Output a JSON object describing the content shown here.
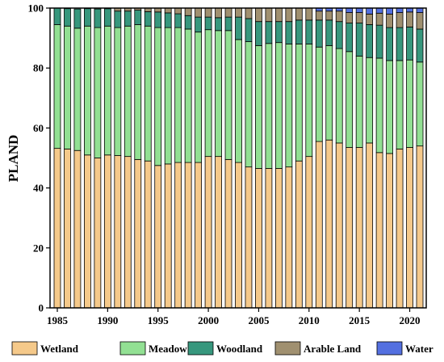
{
  "chart_data": {
    "type": "bar",
    "stacked": true,
    "ylabel": "PLAND",
    "xlabel": "",
    "ylim": [
      0,
      100
    ],
    "y_ticks": [
      0,
      20,
      40,
      60,
      80,
      100
    ],
    "x_ticks": [
      1985,
      1990,
      1995,
      2000,
      2005,
      2010,
      2015,
      2020
    ],
    "grid": false,
    "legend_position": "bottom",
    "categories": [
      1985,
      1986,
      1987,
      1988,
      1989,
      1990,
      1991,
      1992,
      1993,
      1994,
      1995,
      1996,
      1997,
      1998,
      1999,
      2000,
      2001,
      2002,
      2003,
      2004,
      2005,
      2006,
      2007,
      2008,
      2009,
      2010,
      2011,
      2012,
      2013,
      2014,
      2015,
      2016,
      2017,
      2018,
      2019,
      2020,
      2021
    ],
    "series": [
      {
        "name": "Wetland",
        "color": "#f5c98a",
        "values": [
          53.2,
          53.0,
          52.5,
          51.0,
          50.0,
          51.0,
          50.8,
          50.5,
          49.5,
          49.0,
          47.5,
          48.0,
          48.5,
          48.5,
          48.5,
          50.5,
          50.5,
          49.5,
          48.5,
          47.0,
          46.5,
          46.5,
          46.5,
          47.0,
          49.0,
          50.5,
          55.5,
          56.0,
          55.0,
          53.5,
          53.5,
          55.0,
          51.8,
          51.5,
          53.0,
          53.5,
          54.0
        ]
      },
      {
        "name": "Meadow",
        "color": "#92e093",
        "values": [
          41.3,
          41.0,
          40.8,
          43.0,
          43.5,
          43.0,
          42.7,
          43.5,
          45.0,
          45.0,
          46.0,
          45.5,
          45.0,
          44.5,
          43.5,
          42.3,
          42.0,
          43.0,
          41.0,
          41.8,
          41.0,
          41.7,
          42.0,
          41.0,
          39.0,
          37.5,
          31.5,
          31.5,
          31.5,
          32.0,
          30.5,
          28.5,
          31.5,
          31.0,
          29.5,
          29.2,
          28.0
        ]
      },
      {
        "name": "Woodland",
        "color": "#37977d",
        "values": [
          5.5,
          5.8,
          6.4,
          5.8,
          6.2,
          5.8,
          5.5,
          5.0,
          4.8,
          4.8,
          5.2,
          4.9,
          4.6,
          4.5,
          5.0,
          4.2,
          4.3,
          4.5,
          7.5,
          7.7,
          8.0,
          7.3,
          7.0,
          7.5,
          8.0,
          8.0,
          9.0,
          8.5,
          9.0,
          9.5,
          11.0,
          11.0,
          11.0,
          11.0,
          11.0,
          11.0,
          11.0
        ]
      },
      {
        "name": "Arable Land",
        "color": "#a09070",
        "values": [
          0,
          0,
          0,
          0,
          0.3,
          0.2,
          1.0,
          1.0,
          0.7,
          1.2,
          1.3,
          1.6,
          1.9,
          2.5,
          3.0,
          3.0,
          3.2,
          3.0,
          3.0,
          3.5,
          4.5,
          4.5,
          4.5,
          4.5,
          4.0,
          4.0,
          3.0,
          3.0,
          3.5,
          3.5,
          3.5,
          3.5,
          4.0,
          4.5,
          5.0,
          5.0,
          5.5
        ]
      },
      {
        "name": "Water",
        "color": "#5470e0",
        "values": [
          0,
          0,
          0,
          0,
          0,
          0,
          0,
          0,
          0,
          0,
          0,
          0,
          0,
          0,
          0,
          0,
          0,
          0,
          0,
          0,
          0,
          0,
          0,
          0,
          0,
          0,
          1.0,
          1.0,
          1.0,
          1.5,
          1.5,
          2.0,
          1.7,
          2.0,
          1.5,
          1.3,
          1.5
        ]
      }
    ]
  }
}
